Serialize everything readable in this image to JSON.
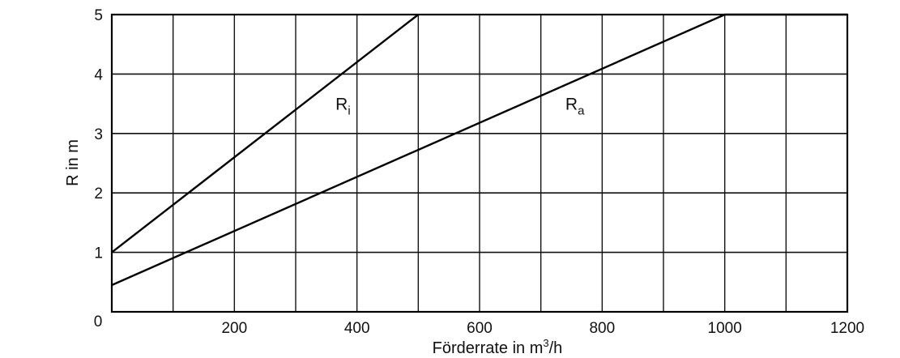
{
  "chart_data": {
    "type": "line",
    "xlabel": "Förderrate in m³/h",
    "xlabel_main": "Förderrate in m",
    "xlabel_sup": "3",
    "xlabel_tail": "/h",
    "ylabel": "R in m",
    "xlim": [
      0,
      1200
    ],
    "ylim": [
      0,
      5
    ],
    "x_major_ticks": [
      0,
      200,
      400,
      600,
      800,
      1000,
      1200
    ],
    "x_minor_gridlines": [
      100,
      300,
      500,
      700,
      900,
      1100
    ],
    "y_ticks": [
      0,
      1,
      2,
      3,
      4,
      5
    ],
    "x_tick_labels": [
      "0",
      "200",
      "400",
      "600",
      "800",
      "1000",
      "1200"
    ],
    "y_tick_labels": [
      "0",
      "1",
      "2",
      "3",
      "4",
      "5"
    ],
    "grid": true,
    "series": [
      {
        "name": "Ri",
        "label_main": "R",
        "label_sub": "i",
        "label_at": [
          365,
          3.4
        ],
        "x": [
          0,
          500
        ],
        "y": [
          1.0,
          5.0
        ]
      },
      {
        "name": "Ra",
        "label_main": "R",
        "label_sub": "a",
        "label_at": [
          740,
          3.4
        ],
        "x": [
          0,
          1000,
          1200
        ],
        "y": [
          0.45,
          5.0,
          5.0
        ]
      }
    ]
  }
}
